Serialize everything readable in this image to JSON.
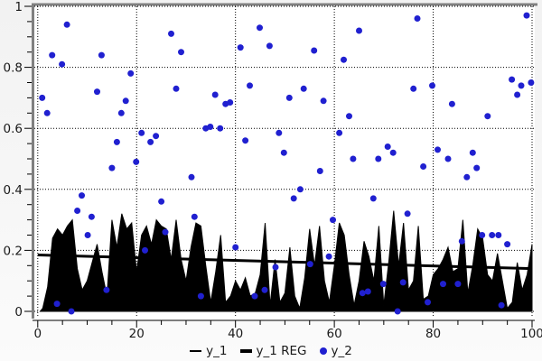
{
  "colors": {
    "series_area": "#000000",
    "series_reg": "#000000",
    "series_scatter": "#2020d0",
    "grid": "#000000",
    "frame_gray": "#808080",
    "axis_black": "#000000",
    "plot_bg": "#ffffff"
  },
  "legend": {
    "items": [
      {
        "label": "y_1",
        "marker": "thin-line-swatch"
      },
      {
        "label": "y_1 REG",
        "marker": "thick-line-swatch"
      },
      {
        "label": "y_2",
        "marker": "dot-swatch"
      }
    ]
  },
  "chart_data": {
    "type": "combo",
    "title": "",
    "xlabel": "",
    "ylabel": "",
    "xlim": [
      0,
      100
    ],
    "ylim": [
      0,
      1
    ],
    "grid": "dotted",
    "legend_position": "bottom-center",
    "x_ticks_major": [
      0,
      20,
      40,
      60,
      80,
      100
    ],
    "x_tick_labels": [
      "0",
      "20",
      "40",
      "60",
      "80",
      "100"
    ],
    "x_minor_step": 5,
    "y_ticks_major": [
      0,
      0.2,
      0.4,
      0.6,
      0.8,
      1
    ],
    "y_tick_labels": [
      "0",
      "0.2",
      "0.4",
      "0.6",
      "0.8",
      "1"
    ],
    "y_minor_step": 0.05,
    "series": [
      {
        "name": "y_1",
        "type": "area",
        "color": "#000000",
        "x_start": 0.5,
        "x": [
          1,
          2,
          3,
          4,
          5,
          6,
          7,
          8,
          9,
          10,
          11,
          12,
          13,
          14,
          15,
          16,
          17,
          18,
          19,
          20,
          21,
          22,
          23,
          24,
          25,
          26,
          27,
          28,
          29,
          30,
          31,
          32,
          33,
          34,
          35,
          36,
          37,
          38,
          39,
          40,
          41,
          42,
          43,
          44,
          45,
          46,
          47,
          48,
          49,
          50,
          51,
          52,
          53,
          54,
          55,
          56,
          57,
          58,
          59,
          60,
          61,
          62,
          63,
          64,
          65,
          66,
          67,
          68,
          69,
          70,
          71,
          72,
          73,
          74,
          75,
          76,
          77,
          78,
          79,
          80,
          81,
          82,
          83,
          84,
          85,
          86,
          87,
          88,
          89,
          90,
          91,
          92,
          93,
          94,
          95,
          96,
          97,
          98,
          99,
          100
        ],
        "values": [
          0.01,
          0.08,
          0.24,
          0.27,
          0.25,
          0.28,
          0.3,
          0.14,
          0.07,
          0.1,
          0.16,
          0.22,
          0.13,
          0.05,
          0.3,
          0.21,
          0.32,
          0.27,
          0.29,
          0.13,
          0.25,
          0.28,
          0.22,
          0.3,
          0.28,
          0.27,
          0.17,
          0.3,
          0.17,
          0.1,
          0.21,
          0.29,
          0.28,
          0.15,
          0.03,
          0.13,
          0.25,
          0.03,
          0.05,
          0.1,
          0.07,
          0.11,
          0.05,
          0.06,
          0.12,
          0.29,
          0.02,
          0.17,
          0.03,
          0.06,
          0.21,
          0.05,
          0.01,
          0.11,
          0.27,
          0.15,
          0.28,
          0.1,
          0.03,
          0.15,
          0.29,
          0.25,
          0.12,
          0.02,
          0.1,
          0.23,
          0.18,
          0.1,
          0.28,
          0.02,
          0.16,
          0.33,
          0.15,
          0.29,
          0.07,
          0.1,
          0.28,
          0.04,
          0.05,
          0.12,
          0.14,
          0.17,
          0.21,
          0.13,
          0.14,
          0.3,
          0.06,
          0.15,
          0.27,
          0.24,
          0.12,
          0.1,
          0.19,
          0.1,
          0.01,
          0.03,
          0.16,
          0.07,
          0.12,
          0.22
        ]
      },
      {
        "name": "y_1 REG",
        "type": "line",
        "color": "#000000",
        "stroke_width": 3,
        "x": [
          0,
          100
        ],
        "values": [
          0.185,
          0.14
        ]
      },
      {
        "name": "y_2",
        "type": "scatter",
        "color": "#2020d0",
        "point_radius": 3.5,
        "points": [
          [
            0.9,
            0.7
          ],
          [
            1.9,
            0.65
          ],
          [
            2.9,
            0.84
          ],
          [
            3.9,
            0.025
          ],
          [
            4.9,
            0.81
          ],
          [
            5.9,
            0.94
          ],
          [
            6.8,
            0.0
          ],
          [
            8.0,
            0.33
          ],
          [
            8.9,
            0.38
          ],
          [
            10.1,
            0.25
          ],
          [
            10.9,
            0.31
          ],
          [
            12.0,
            0.72
          ],
          [
            12.9,
            0.84
          ],
          [
            13.9,
            0.07
          ],
          [
            15.0,
            0.47
          ],
          [
            16.0,
            0.555
          ],
          [
            16.9,
            0.65
          ],
          [
            17.8,
            0.69
          ],
          [
            18.8,
            0.78
          ],
          [
            19.9,
            0.49
          ],
          [
            21.0,
            0.585
          ],
          [
            21.7,
            0.2
          ],
          [
            22.8,
            0.555
          ],
          [
            23.9,
            0.575
          ],
          [
            25.0,
            0.36
          ],
          [
            25.8,
            0.26
          ],
          [
            27.0,
            0.91
          ],
          [
            28.0,
            0.73
          ],
          [
            29.0,
            0.85
          ],
          [
            31.1,
            0.44
          ],
          [
            31.7,
            0.31
          ],
          [
            33.0,
            0.05
          ],
          [
            34.0,
            0.6
          ],
          [
            34.9,
            0.605
          ],
          [
            35.9,
            0.71
          ],
          [
            36.9,
            0.6
          ],
          [
            38.0,
            0.68
          ],
          [
            38.9,
            0.685
          ],
          [
            40.0,
            0.21
          ],
          [
            41.0,
            0.865
          ],
          [
            42.0,
            0.56
          ],
          [
            42.9,
            0.74
          ],
          [
            43.9,
            0.05
          ],
          [
            44.9,
            0.93
          ],
          [
            45.9,
            0.07
          ],
          [
            46.9,
            0.87
          ],
          [
            48.1,
            0.145
          ],
          [
            48.8,
            0.585
          ],
          [
            49.8,
            0.52
          ],
          [
            50.9,
            0.7
          ],
          [
            51.8,
            0.37
          ],
          [
            53.1,
            0.4
          ],
          [
            53.8,
            0.73
          ],
          [
            55.1,
            0.155
          ],
          [
            55.9,
            0.855
          ],
          [
            57.1,
            0.46
          ],
          [
            57.8,
            0.69
          ],
          [
            58.9,
            0.18
          ],
          [
            59.7,
            0.3
          ],
          [
            61.0,
            0.585
          ],
          [
            61.9,
            0.825
          ],
          [
            63.0,
            0.64
          ],
          [
            63.8,
            0.5
          ],
          [
            65.0,
            0.92
          ],
          [
            65.7,
            0.06
          ],
          [
            66.8,
            0.065
          ],
          [
            67.9,
            0.37
          ],
          [
            68.9,
            0.5
          ],
          [
            69.9,
            0.09
          ],
          [
            70.8,
            0.54
          ],
          [
            71.9,
            0.52
          ],
          [
            72.8,
            0.0
          ],
          [
            73.9,
            0.095
          ],
          [
            74.8,
            0.32
          ],
          [
            76.0,
            0.73
          ],
          [
            76.8,
            0.96
          ],
          [
            78.0,
            0.475
          ],
          [
            78.9,
            0.03
          ],
          [
            79.8,
            0.74
          ],
          [
            80.9,
            0.53
          ],
          [
            82.0,
            0.09
          ],
          [
            83.0,
            0.5
          ],
          [
            83.8,
            0.68
          ],
          [
            85.0,
            0.09
          ],
          [
            85.8,
            0.23
          ],
          [
            86.8,
            0.44
          ],
          [
            88.0,
            0.52
          ],
          [
            88.8,
            0.47
          ],
          [
            89.9,
            0.25
          ],
          [
            91.0,
            0.64
          ],
          [
            91.9,
            0.25
          ],
          [
            93.2,
            0.25
          ],
          [
            93.8,
            0.02
          ],
          [
            95.0,
            0.22
          ],
          [
            95.9,
            0.76
          ],
          [
            97.0,
            0.71
          ],
          [
            97.8,
            0.74
          ],
          [
            98.9,
            0.97
          ],
          [
            99.8,
            0.75
          ]
        ]
      }
    ]
  }
}
